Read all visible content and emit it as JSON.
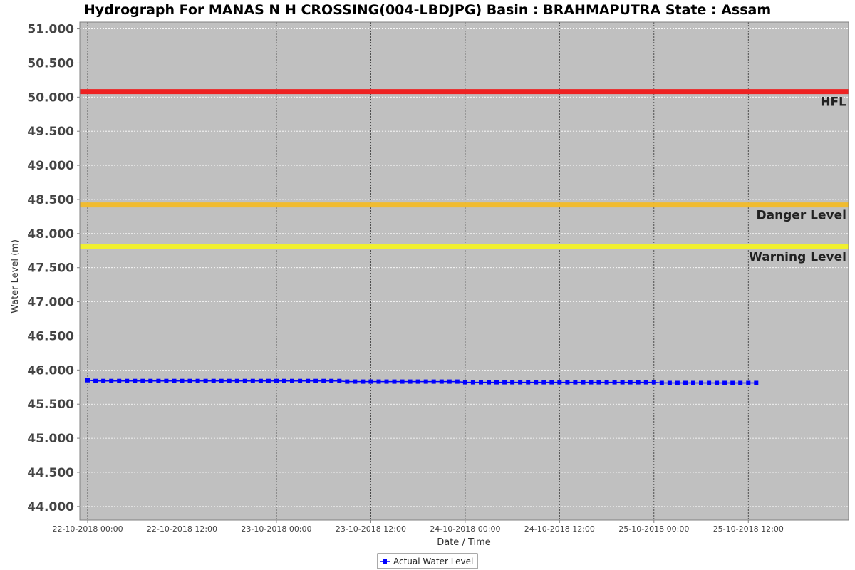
{
  "chart_data": {
    "type": "line",
    "title": "Hydrograph For MANAS N H CROSSING(004-LBDJPG) Basin : BRAHMAPUTRA State : Assam",
    "xlabel": "Date / Time",
    "ylabel": "Water Level (m)",
    "ylim": [
      43.8,
      51.1
    ],
    "xlim": [
      "2018-10-21 23:00",
      "2018-10-26 00:45"
    ],
    "grid": true,
    "legend_position": "bottom-center",
    "yticks": [
      "44.000",
      "44.500",
      "45.000",
      "45.500",
      "46.000",
      "46.500",
      "47.000",
      "47.500",
      "48.000",
      "48.500",
      "49.000",
      "49.500",
      "50.000",
      "50.500",
      "51.000"
    ],
    "xticks": [
      {
        "value": "2018-10-22 00:00",
        "label": "22-10-2018 00:00"
      },
      {
        "value": "2018-10-22 12:00",
        "label": "22-10-2018 12:00"
      },
      {
        "value": "2018-10-23 00:00",
        "label": "23-10-2018 00:00"
      },
      {
        "value": "2018-10-23 12:00",
        "label": "23-10-2018 12:00"
      },
      {
        "value": "2018-10-24 00:00",
        "label": "24-10-2018 00:00"
      },
      {
        "value": "2018-10-24 12:00",
        "label": "24-10-2018 12:00"
      },
      {
        "value": "2018-10-25 00:00",
        "label": "25-10-2018 00:00"
      },
      {
        "value": "2018-10-25 12:00",
        "label": "25-10-2018 12:00"
      }
    ],
    "reference_lines": [
      {
        "name": "HFL",
        "value": 50.08,
        "color": "#ee2222"
      },
      {
        "name": "Danger Level",
        "value": 48.42,
        "color": "#f0bb30"
      },
      {
        "name": "Warning Level",
        "value": 47.81,
        "color": "#f0f030"
      }
    ],
    "series": [
      {
        "name": "Actual Water Level",
        "color": "#0000ff",
        "x": [
          "2018-10-22 00:00",
          "2018-10-22 01:00",
          "2018-10-22 02:00",
          "2018-10-22 03:00",
          "2018-10-22 04:00",
          "2018-10-22 05:00",
          "2018-10-22 06:00",
          "2018-10-22 07:00",
          "2018-10-22 08:00",
          "2018-10-22 09:00",
          "2018-10-22 10:00",
          "2018-10-22 11:00",
          "2018-10-22 12:00",
          "2018-10-22 13:00",
          "2018-10-22 14:00",
          "2018-10-22 15:00",
          "2018-10-22 16:00",
          "2018-10-22 17:00",
          "2018-10-22 18:00",
          "2018-10-22 19:00",
          "2018-10-22 20:00",
          "2018-10-22 21:00",
          "2018-10-22 22:00",
          "2018-10-22 23:00",
          "2018-10-23 00:00",
          "2018-10-23 01:00",
          "2018-10-23 02:00",
          "2018-10-23 03:00",
          "2018-10-23 04:00",
          "2018-10-23 05:00",
          "2018-10-23 06:00",
          "2018-10-23 07:00",
          "2018-10-23 08:00",
          "2018-10-23 09:00",
          "2018-10-23 10:00",
          "2018-10-23 11:00",
          "2018-10-23 12:00",
          "2018-10-23 13:00",
          "2018-10-23 14:00",
          "2018-10-23 15:00",
          "2018-10-23 16:00",
          "2018-10-23 17:00",
          "2018-10-23 18:00",
          "2018-10-23 19:00",
          "2018-10-23 20:00",
          "2018-10-23 21:00",
          "2018-10-23 22:00",
          "2018-10-23 23:00",
          "2018-10-24 00:00",
          "2018-10-24 01:00",
          "2018-10-24 02:00",
          "2018-10-24 03:00",
          "2018-10-24 04:00",
          "2018-10-24 05:00",
          "2018-10-24 06:00",
          "2018-10-24 07:00",
          "2018-10-24 08:00",
          "2018-10-24 09:00",
          "2018-10-24 10:00",
          "2018-10-24 11:00",
          "2018-10-24 12:00",
          "2018-10-24 13:00",
          "2018-10-24 14:00",
          "2018-10-24 15:00",
          "2018-10-24 16:00",
          "2018-10-24 17:00",
          "2018-10-24 18:00",
          "2018-10-24 19:00",
          "2018-10-24 20:00",
          "2018-10-24 21:00",
          "2018-10-24 22:00",
          "2018-10-24 23:00",
          "2018-10-25 00:00",
          "2018-10-25 01:00",
          "2018-10-25 02:00",
          "2018-10-25 03:00",
          "2018-10-25 04:00",
          "2018-10-25 05:00",
          "2018-10-25 06:00",
          "2018-10-25 07:00",
          "2018-10-25 08:00",
          "2018-10-25 09:00",
          "2018-10-25 10:00",
          "2018-10-25 11:00",
          "2018-10-25 12:00",
          "2018-10-25 13:00"
        ],
        "values": [
          45.85,
          45.84,
          45.84,
          45.84,
          45.84,
          45.84,
          45.84,
          45.84,
          45.84,
          45.84,
          45.84,
          45.84,
          45.84,
          45.84,
          45.84,
          45.84,
          45.84,
          45.84,
          45.84,
          45.84,
          45.84,
          45.84,
          45.84,
          45.84,
          45.84,
          45.84,
          45.84,
          45.84,
          45.84,
          45.84,
          45.84,
          45.84,
          45.84,
          45.83,
          45.83,
          45.83,
          45.83,
          45.83,
          45.83,
          45.83,
          45.83,
          45.83,
          45.83,
          45.83,
          45.83,
          45.83,
          45.83,
          45.83,
          45.82,
          45.82,
          45.82,
          45.82,
          45.82,
          45.82,
          45.82,
          45.82,
          45.82,
          45.82,
          45.82,
          45.82,
          45.82,
          45.82,
          45.82,
          45.82,
          45.82,
          45.82,
          45.82,
          45.82,
          45.82,
          45.82,
          45.82,
          45.82,
          45.82,
          45.81,
          45.81,
          45.81,
          45.81,
          45.81,
          45.81,
          45.81,
          45.81,
          45.81,
          45.81,
          45.81,
          45.81,
          45.81
        ]
      }
    ]
  }
}
